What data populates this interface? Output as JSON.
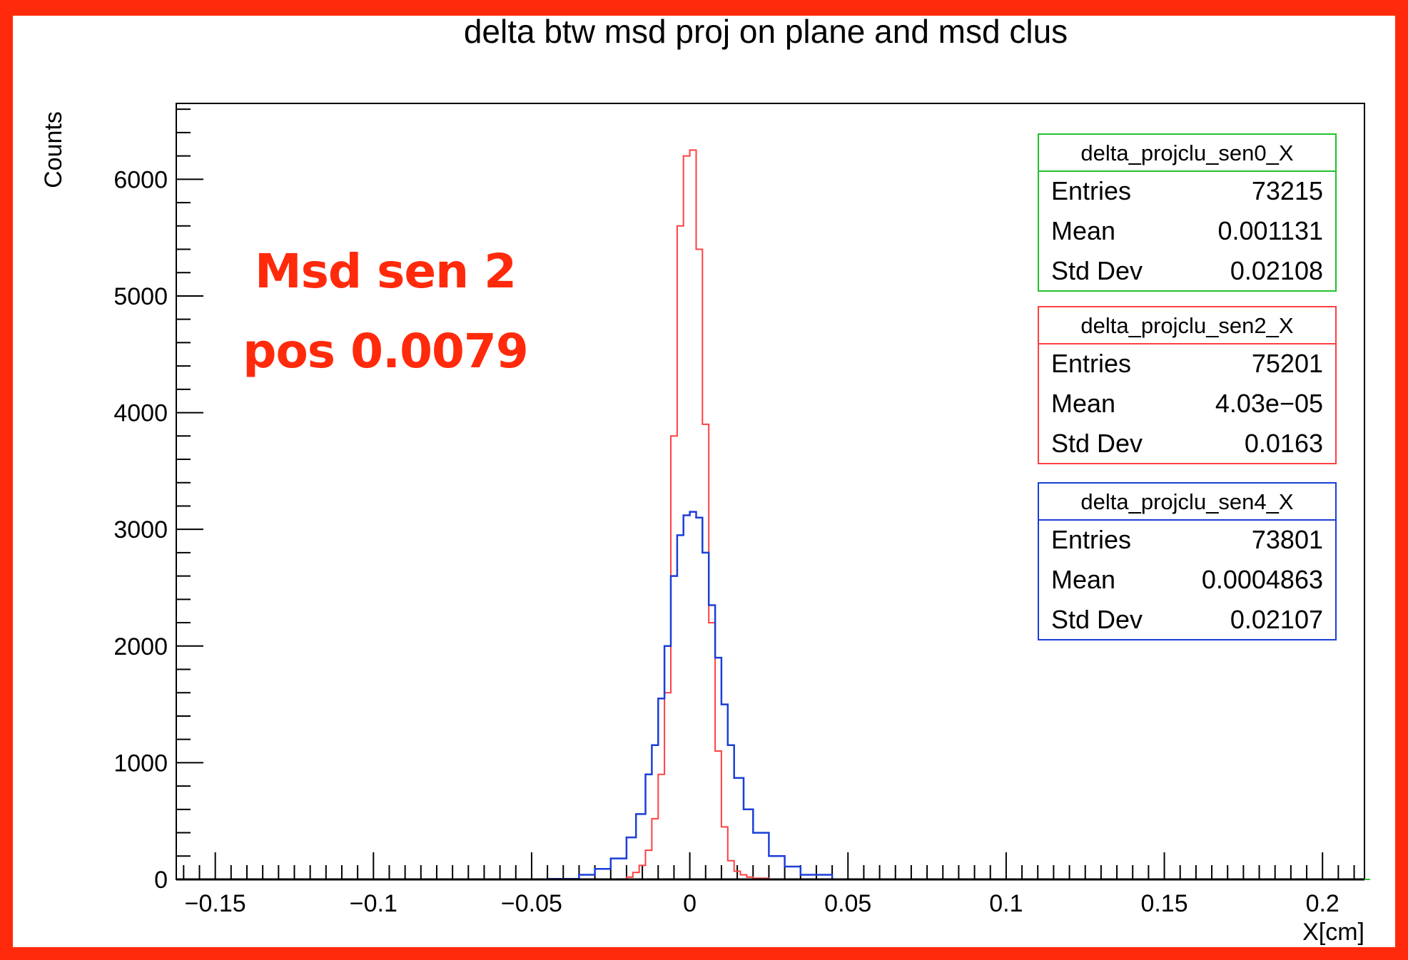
{
  "frame_color": "#ff2a0b",
  "annotation": {
    "line1": "Msd sen 2",
    "line2": "pos 0.0079",
    "color": "#ff2a0b"
  },
  "chart_data": {
    "type": "histogram",
    "title": "delta btw msd proj on plane and msd clus",
    "xlabel": "X[cm]",
    "ylabel": "Counts",
    "xlim": [
      -0.16,
      0.215
    ],
    "ylim": [
      0,
      6650
    ],
    "x_ticks": [
      -0.15,
      -0.1,
      -0.05,
      0,
      0.05,
      0.1,
      0.15,
      0.2
    ],
    "x_tick_labels": [
      "−0.15",
      "−0.1",
      "−0.05",
      "0",
      "0.05",
      "0.1",
      "0.15",
      "0.2"
    ],
    "y_ticks": [
      0,
      1000,
      2000,
      3000,
      4000,
      5000,
      6000
    ],
    "y_tick_labels": [
      "0",
      "1000",
      "2000",
      "3000",
      "4000",
      "5000",
      "6000"
    ],
    "grid": false,
    "legend_position": "top-right",
    "series": [
      {
        "name": "delta_projclu_sen2_X",
        "color": "#ff4040",
        "x": [
          -0.025,
          -0.02,
          -0.018,
          -0.016,
          -0.014,
          -0.012,
          -0.01,
          -0.008,
          -0.006,
          -0.004,
          -0.002,
          0,
          0.002,
          0.004,
          0.006,
          0.008,
          0.01,
          0.012,
          0.014,
          0.016,
          0.018,
          0.02,
          0.025
        ],
        "y": [
          0,
          20,
          60,
          120,
          250,
          520,
          900,
          1600,
          3800,
          5600,
          6200,
          6250,
          5400,
          3900,
          2200,
          1100,
          450,
          160,
          70,
          40,
          20,
          10,
          0
        ]
      },
      {
        "name": "delta_projclu_sen4_X",
        "color": "#1a3fd6",
        "x": [
          -0.045,
          -0.035,
          -0.03,
          -0.025,
          -0.02,
          -0.017,
          -0.014,
          -0.012,
          -0.01,
          -0.008,
          -0.006,
          -0.004,
          -0.002,
          0,
          0.002,
          0.004,
          0.006,
          0.008,
          0.01,
          0.012,
          0.014,
          0.017,
          0.02,
          0.025,
          0.03,
          0.035,
          0.045
        ],
        "y": [
          5,
          40,
          90,
          180,
          360,
          560,
          900,
          1150,
          1550,
          2000,
          2600,
          2950,
          3120,
          3150,
          3100,
          2800,
          2350,
          1900,
          1500,
          1150,
          870,
          600,
          400,
          200,
          110,
          40,
          5
        ]
      },
      {
        "name": "delta_projclu_sen0_X",
        "color": "#22c22a",
        "x": [
          -0.16,
          0.215
        ],
        "y": [
          0,
          0
        ]
      }
    ],
    "stats_boxes": [
      {
        "name": "delta_projclu_sen0_X",
        "color": "#22c22a",
        "rows": [
          {
            "label": "Entries",
            "value": "73215"
          },
          {
            "label": "Mean",
            "value": "0.001131"
          },
          {
            "label": "Std Dev",
            "value": "0.02108"
          }
        ]
      },
      {
        "name": "delta_projclu_sen2_X",
        "color": "#ff4040",
        "rows": [
          {
            "label": "Entries",
            "value": "75201"
          },
          {
            "label": "Mean",
            "value": "4.03e−05"
          },
          {
            "label": "Std Dev",
            "value": "0.0163"
          }
        ]
      },
      {
        "name": "delta_projclu_sen4_X",
        "color": "#1a3fd6",
        "rows": [
          {
            "label": "Entries",
            "value": "73801"
          },
          {
            "label": "Mean",
            "value": "0.0004863"
          },
          {
            "label": "Std Dev",
            "value": "0.02107"
          }
        ]
      }
    ]
  }
}
